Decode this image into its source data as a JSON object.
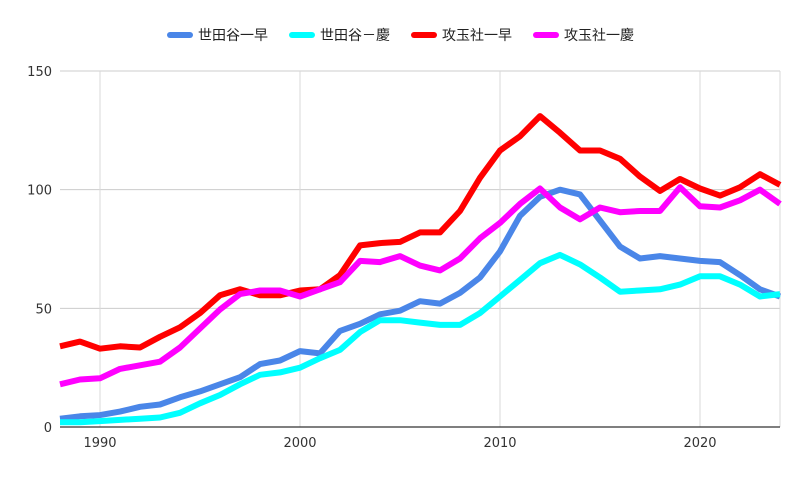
{
  "chart_data": {
    "type": "line",
    "title": "",
    "xlabel": "",
    "ylabel": "",
    "xlim": [
      1988,
      2024
    ],
    "ylim": [
      0,
      150
    ],
    "x_ticks": [
      1990,
      2000,
      2010,
      2020
    ],
    "y_ticks": [
      0,
      50,
      100,
      150
    ],
    "grid": {
      "horizontal": true,
      "vertical": true
    },
    "legend_position": "top-center",
    "x": [
      1988,
      1989,
      1990,
      1991,
      1992,
      1993,
      1994,
      1995,
      1996,
      1997,
      1998,
      1999,
      2000,
      2001,
      2002,
      2003,
      2004,
      2005,
      2006,
      2007,
      2008,
      2009,
      2010,
      2011,
      2012,
      2013,
      2014,
      2015,
      2016,
      2017,
      2018,
      2019,
      2020,
      2021,
      2022,
      2023,
      2024
    ],
    "series": [
      {
        "name": "世田谷一早",
        "color": "#4a86e8",
        "values": [
          3.5,
          4.5,
          5,
          6.5,
          8.5,
          9.5,
          12.5,
          15,
          18,
          21,
          26.5,
          28,
          32,
          31,
          40.5,
          43.5,
          47.5,
          49,
          53,
          52,
          56.5,
          63,
          74,
          89,
          97,
          100,
          98,
          87,
          76,
          71,
          72,
          71,
          70,
          69.5,
          64,
          58,
          55
        ]
      },
      {
        "name": "世田谷－慶",
        "color": "#00ffff",
        "values": [
          2,
          2,
          2.5,
          3,
          3.5,
          4,
          6,
          10,
          13.5,
          18,
          22,
          23,
          25,
          29,
          32.5,
          40,
          45,
          45,
          44,
          43,
          43,
          48,
          55,
          62,
          69,
          72.5,
          68.5,
          63,
          57,
          57.5,
          58,
          60,
          63.5,
          63.5,
          60,
          55,
          56
        ]
      },
      {
        "name": "攻玉社一早",
        "color": "#ff0000",
        "values": [
          34,
          36,
          33,
          34,
          33.5,
          38,
          42,
          48,
          55.5,
          58,
          55.5,
          55.5,
          57.5,
          58,
          64,
          76.5,
          77.5,
          78,
          82,
          82,
          91,
          105,
          116.5,
          122.5,
          131,
          124,
          116.5,
          116.5,
          113,
          105.5,
          99.5,
          104.5,
          100.5,
          97.5,
          101,
          106.5,
          102
        ]
      },
      {
        "name": "攻玉社一慶",
        "color": "#ff00ff",
        "values": [
          18,
          20,
          20.5,
          24.5,
          26,
          27.5,
          33.5,
          41.5,
          49.5,
          56,
          57.5,
          57.5,
          55,
          58,
          61,
          70,
          69.5,
          72,
          68,
          66,
          71,
          79.5,
          86,
          94,
          100.5,
          92.5,
          87.5,
          92.5,
          90.5,
          91,
          91,
          101,
          93,
          92.5,
          95.5,
          100,
          94
        ]
      }
    ]
  }
}
